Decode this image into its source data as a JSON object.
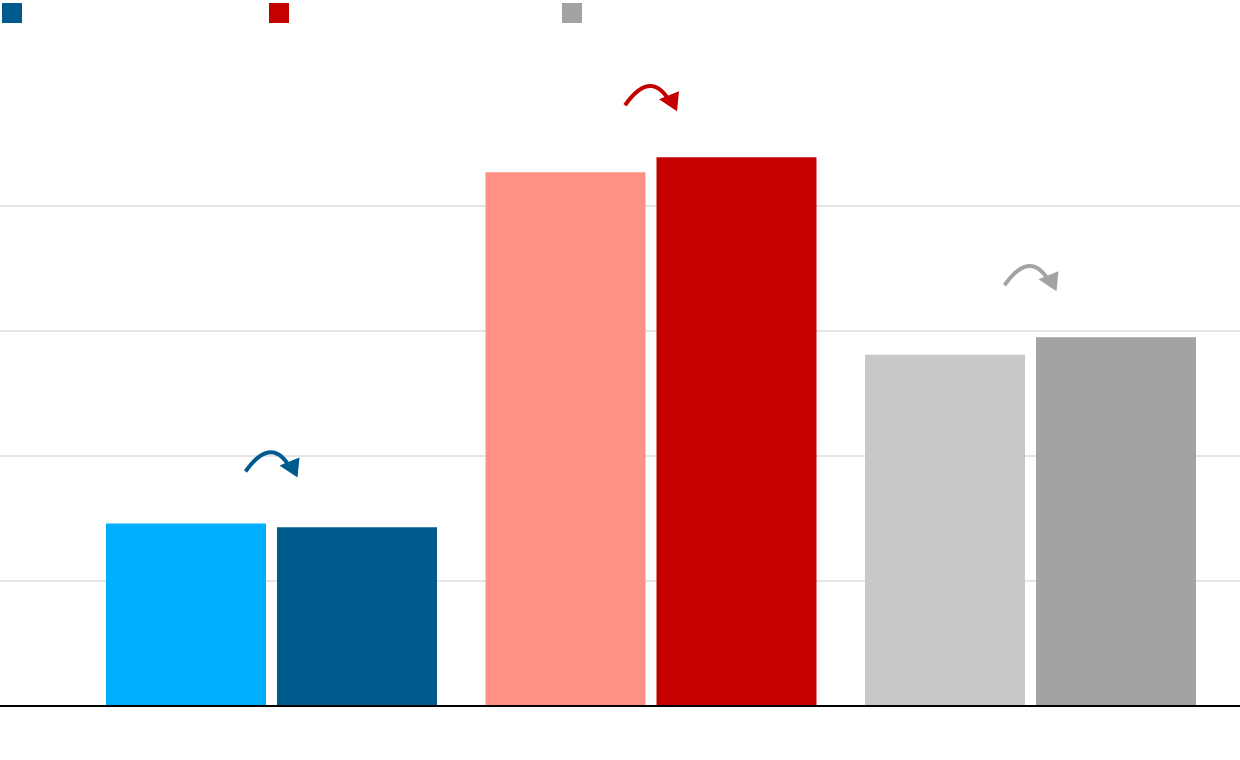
{
  "chart_data": {
    "type": "bar",
    "categories": [
      null,
      null,
      null
    ],
    "series": [
      {
        "colors": [
          "#00b0ff",
          "#ff9184",
          "#c8c8c8"
        ],
        "values": [
          1.46,
          4.27,
          2.81
        ]
      },
      {
        "colors": [
          "#005a8e",
          "#c40000",
          "#a3a3a3"
        ],
        "values": [
          1.43,
          4.39,
          2.95
        ]
      }
    ],
    "ylim": [
      0,
      5
    ],
    "yticks": [
      0,
      1,
      2,
      3,
      4
    ],
    "grid": true
  }
}
